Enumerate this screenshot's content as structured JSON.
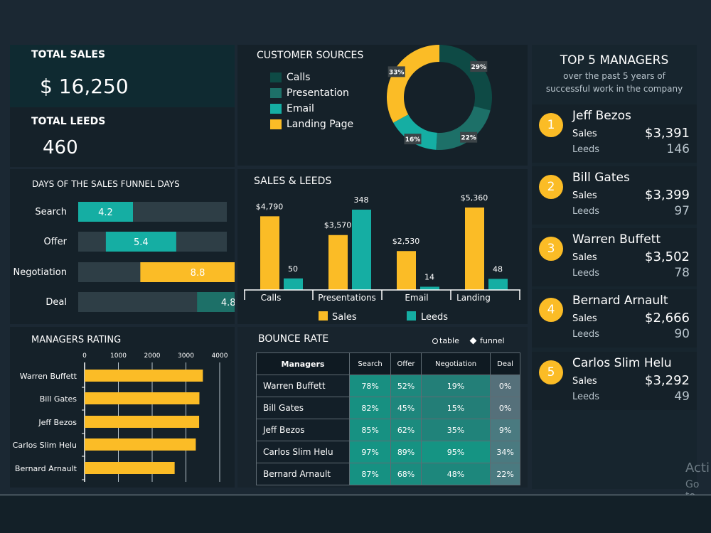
{
  "colors": {
    "accent": "#fbbc26",
    "teal": "#15aea3",
    "dark_teal": "#0e4a45",
    "mid_teal": "#1d7068"
  },
  "total_sales": {
    "label": "TOTAL SALES",
    "value": "$ 16,250"
  },
  "total_leeds": {
    "label": "TOTAL LEEDS",
    "value": "460"
  },
  "customer_sources": {
    "title": "CUSTOMER SOURCES",
    "legend": [
      "Calls",
      "Presentation",
      "Email",
      "Landing Page"
    ],
    "chart_data": {
      "type": "pie",
      "categories": [
        "Calls",
        "Presentation",
        "Email",
        "Landing Page"
      ],
      "values": [
        29,
        22,
        16,
        33
      ],
      "labels": [
        "29%",
        "22%",
        "16%",
        "33%"
      ],
      "colors": [
        "#0e4a45",
        "#1d7068",
        "#15aea3",
        "#fbbc26"
      ]
    }
  },
  "funnel": {
    "title": "DAYS OF THE SALES FUNNEL DAYS",
    "chart_data": {
      "type": "bar",
      "categories": [
        "Search",
        "Offer",
        "Negotiation",
        "Deal"
      ],
      "values": [
        4.2,
        5.4,
        8.8,
        4.8
      ],
      "labels": [
        "4.2",
        "5.4",
        "8.8",
        "4.8"
      ]
    }
  },
  "sales_leeds": {
    "title": "SALES & LEEDS",
    "legend": [
      "Sales",
      "Leeds"
    ],
    "chart_data": {
      "type": "bar",
      "categories": [
        "Calls",
        "Presentations",
        "Email",
        "Landing"
      ],
      "series": [
        {
          "name": "Sales",
          "values": [
            4790,
            3570,
            2530,
            5360
          ],
          "labels": [
            "$4,790",
            "$3,570",
            "$2,530",
            "$5,360"
          ]
        },
        {
          "name": "Leeds",
          "values": [
            50,
            348,
            14,
            48
          ],
          "labels": [
            "50",
            "348",
            "14",
            "48"
          ]
        }
      ]
    }
  },
  "managers_rating": {
    "title": "MANAGERS RATING",
    "chart_data": {
      "type": "bar",
      "categories": [
        "Warren Buffett",
        "Bill Gates",
        "Jeff Bezos",
        "Carlos Slim Helu",
        "Bernard Arnault"
      ],
      "values": [
        3502,
        3399,
        3391,
        3292,
        2666
      ],
      "xlim": [
        0,
        4000
      ],
      "ticks": [
        "0",
        "1000",
        "2000",
        "3000",
        "4000"
      ]
    }
  },
  "bounce_rate": {
    "title": "BOUNCE RATE",
    "options": [
      "table",
      "funnel"
    ],
    "chart_data": {
      "type": "table",
      "columns": [
        "Managers",
        "Search",
        "Offer",
        "Negotiation",
        "Deal"
      ],
      "rows": [
        [
          "Warren Buffett",
          "78%",
          "52%",
          "19%",
          "0%"
        ],
        [
          "Bill Gates",
          "82%",
          "45%",
          "15%",
          "0%"
        ],
        [
          "Jeff Bezos",
          "85%",
          "62%",
          "35%",
          "9%"
        ],
        [
          "Carlos Slim Helu",
          "97%",
          "89%",
          "95%",
          "34%"
        ],
        [
          "Bernard Arnault",
          "87%",
          "68%",
          "48%",
          "22%"
        ]
      ]
    }
  },
  "top_managers": {
    "title": "TOP 5 MANAGERS",
    "subtitle": "over the past 5 years of successful work in the company",
    "sales_label": "Sales",
    "leeds_label": "Leeds",
    "items": [
      {
        "rank": "1",
        "name": "Jeff Bezos",
        "sales": "$3,391",
        "leeds": "146"
      },
      {
        "rank": "2",
        "name": "Bill Gates",
        "sales": "$3,399",
        "leeds": "97"
      },
      {
        "rank": "3",
        "name": "Warren Buffett",
        "sales": "$3,502",
        "leeds": "78"
      },
      {
        "rank": "4",
        "name": "Bernard Arnault",
        "sales": "$2,666",
        "leeds": "90"
      },
      {
        "rank": "5",
        "name": "Carlos Slim Helu",
        "sales": "$3,292",
        "leeds": "49"
      }
    ]
  },
  "watermark": {
    "line1": "Acti",
    "line2": "Go to"
  }
}
